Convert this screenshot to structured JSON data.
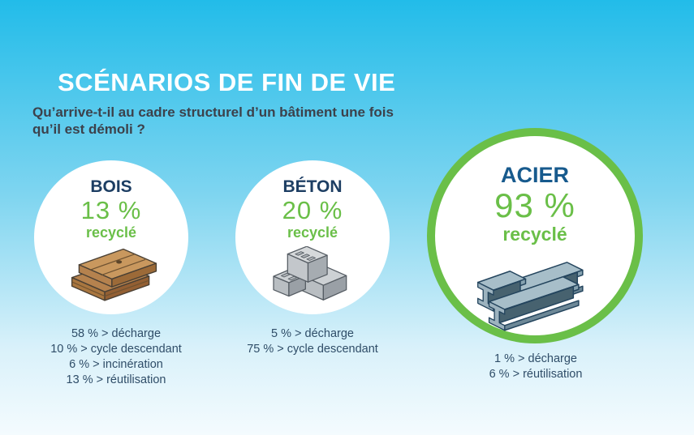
{
  "header": {
    "title": "SCÉNARIOS DE FIN DE VIE",
    "subtitle": "Qu’arrive-t-il au cadre structurel d’un bâtiment une fois qu’il est démoli ?"
  },
  "materials": [
    {
      "name": "BOIS",
      "pct": "13 %",
      "recycled_label": "recyclé",
      "icon": "wood-planks-icon",
      "breakdown": [
        "58 % > décharge",
        "10 % > cycle descendant",
        "6 % > incinération",
        "13 % > réutilisation"
      ],
      "highlighted": false
    },
    {
      "name": "BÉTON",
      "pct": "20 %",
      "recycled_label": "recyclé",
      "icon": "concrete-blocks-icon",
      "breakdown": [
        "5 % > décharge",
        "75 % > cycle descendant"
      ],
      "highlighted": false
    },
    {
      "name": "ACIER",
      "pct": "93 %",
      "recycled_label": "recyclé",
      "icon": "steel-beams-icon",
      "breakdown": [
        "1 % > décharge",
        "6 % > réutilisation"
      ],
      "highlighted": true
    }
  ],
  "colors": {
    "accent_green": "#6abf48",
    "navy": "#1d3e63",
    "steel_blue": "#175a8d",
    "bg_top": "#22bce9",
    "bg_bottom": "#f4fbfe",
    "list_text": "#2f4d68"
  },
  "chart_data": {
    "type": "table",
    "title": "SCÉNARIOS DE FIN DE VIE",
    "subtitle": "Qu’arrive-t-il au cadre structurel d’un bâtiment une fois qu’il est démoli ?",
    "categories": [
      "BOIS",
      "BÉTON",
      "ACIER"
    ],
    "series": [
      {
        "name": "recyclé",
        "values": [
          13,
          20,
          93
        ]
      },
      {
        "name": "décharge",
        "values": [
          58,
          5,
          1
        ]
      },
      {
        "name": "cycle descendant",
        "values": [
          10,
          75,
          null
        ]
      },
      {
        "name": "incinération",
        "values": [
          6,
          null,
          null
        ]
      },
      {
        "name": "réutilisation",
        "values": [
          13,
          null,
          6
        ]
      }
    ],
    "unit": "%",
    "highlighted_category": "ACIER"
  }
}
